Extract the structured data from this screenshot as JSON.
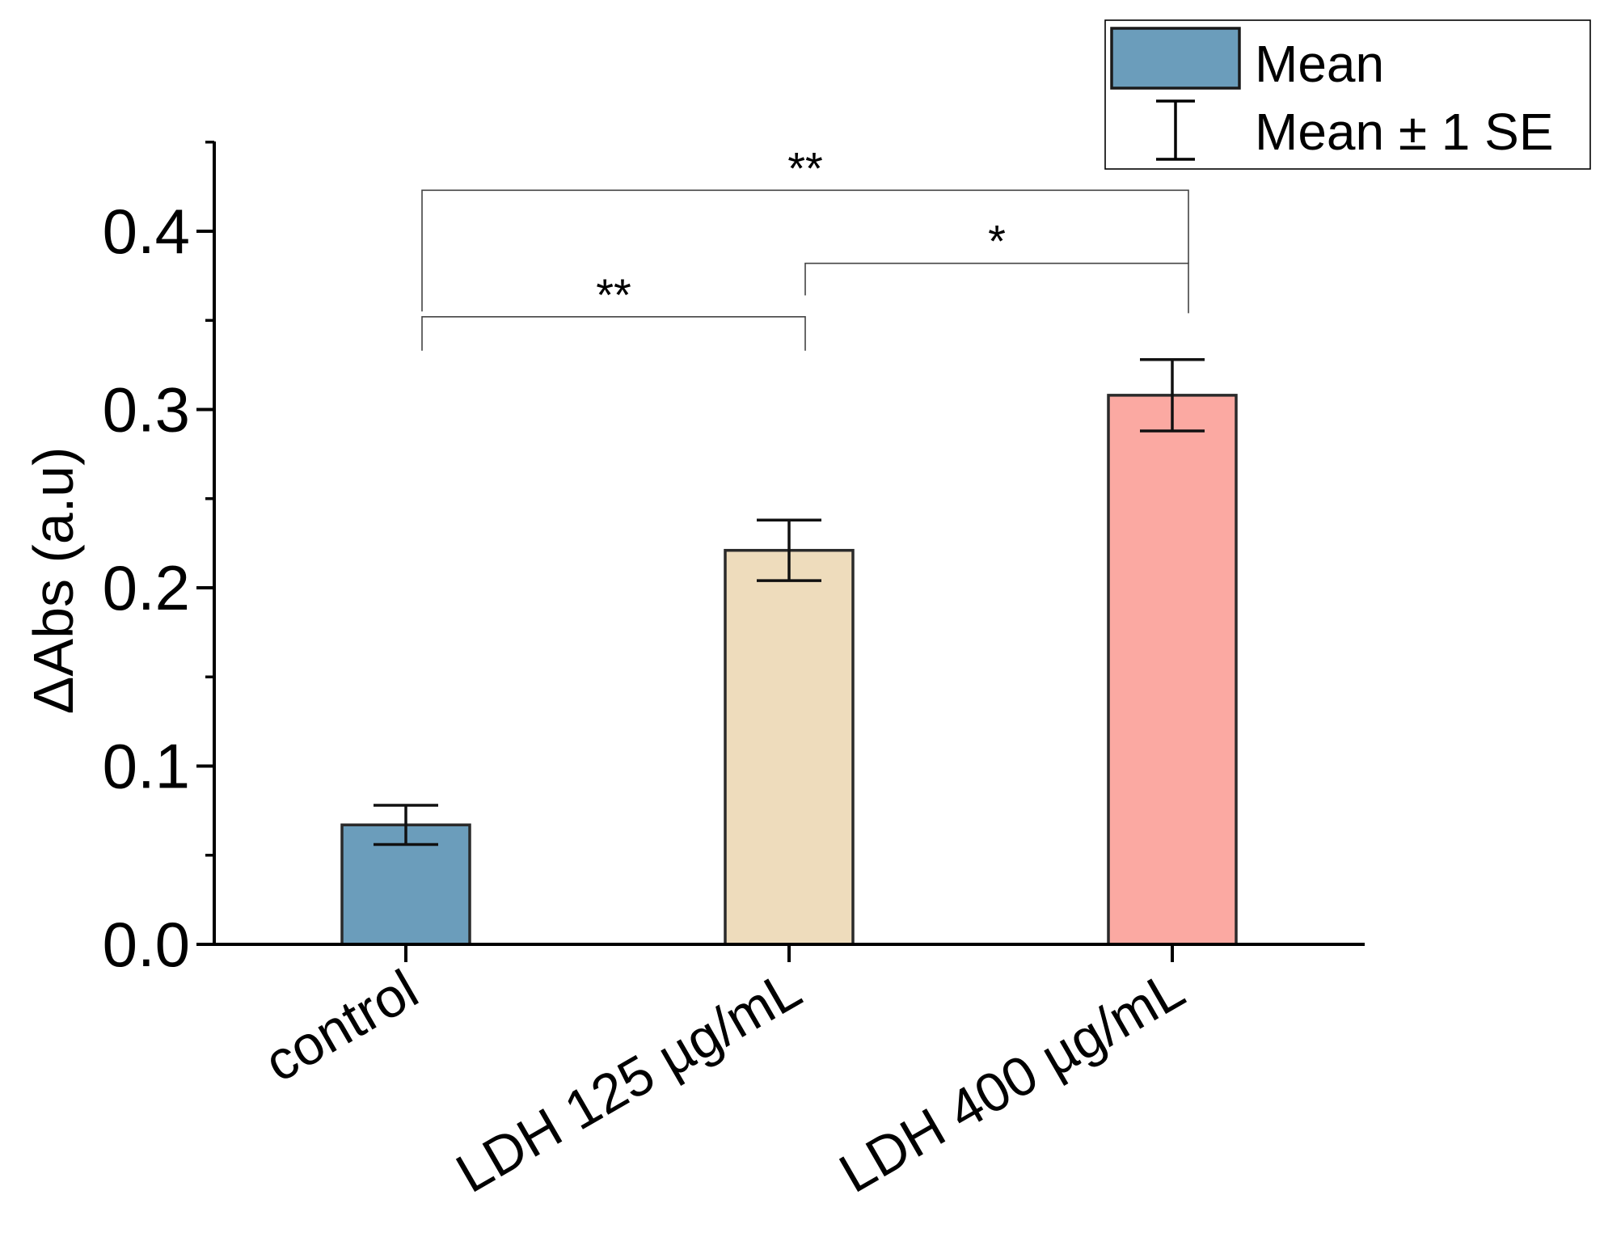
{
  "chart_data": {
    "type": "bar",
    "title": "",
    "xlabel": "",
    "ylabel": "ΔAbs (a.u)",
    "ylim": [
      0,
      0.45
    ],
    "yticks": [
      0.0,
      0.1,
      0.2,
      0.3,
      0.4
    ],
    "ytick_labels": [
      "0.0",
      "0.1",
      "0.2",
      "0.3",
      "0.4"
    ],
    "categories": [
      "control",
      "LDH 125 µg/mL",
      "LDH 400 µg/mL"
    ],
    "values": [
      0.067,
      0.221,
      0.308
    ],
    "errors": [
      0.011,
      0.017,
      0.02
    ],
    "colors": [
      "#6b9dbb",
      "#eedcbc",
      "#fba9a2"
    ],
    "bar_edge_color": "#2a2a2a",
    "legend": {
      "position": "top-right",
      "entries": [
        {
          "label": "Mean",
          "kind": "bar"
        },
        {
          "label": "Mean ± 1 SE",
          "kind": "errorbar"
        }
      ]
    },
    "significance": [
      {
        "from": 0,
        "to": 1,
        "label": "**",
        "y": 0.352,
        "drop_from": 0.333,
        "drop_to": 0.333
      },
      {
        "from": 1,
        "to": 2,
        "label": "*",
        "y": 0.382,
        "drop_from": 0.364,
        "drop_to": 0.354
      },
      {
        "from": 0,
        "to": 2,
        "label": "**",
        "y": 0.423,
        "drop_from": 0.355,
        "drop_to": 0.382
      }
    ]
  }
}
